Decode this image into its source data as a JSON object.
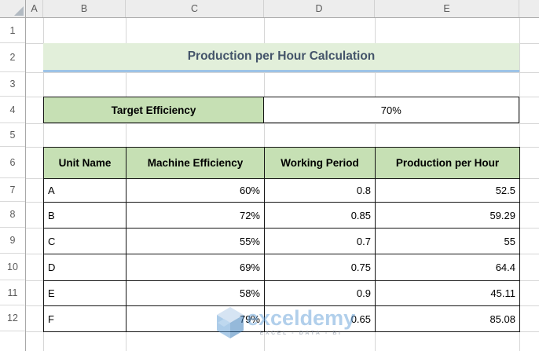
{
  "sheet": {
    "column_headers": [
      "A",
      "B",
      "C",
      "D",
      "E"
    ],
    "row_headers": [
      "1",
      "2",
      "3",
      "4",
      "5",
      "6",
      "7",
      "8",
      "9",
      "10",
      "11",
      "12"
    ]
  },
  "title": {
    "text": "Production per Hour Calculation"
  },
  "target": {
    "label": "Target Efficiency",
    "value": "70%"
  },
  "table": {
    "headers": [
      "Unit Name",
      "Machine Efficiency",
      "Working Period",
      "Production per Hour"
    ],
    "rows": [
      [
        "A",
        "60%",
        "0.8",
        "52.5"
      ],
      [
        "B",
        "72%",
        "0.85",
        "59.29"
      ],
      [
        "C",
        "55%",
        "0.7",
        "55"
      ],
      [
        "D",
        "69%",
        "0.75",
        "64.4"
      ],
      [
        "E",
        "58%",
        "0.9",
        "45.11"
      ],
      [
        "F",
        "79%",
        "0.65",
        "85.08"
      ]
    ]
  },
  "watermark": {
    "brand": "exceldemy",
    "tagline": "EXCEL - DATA - BI"
  },
  "colors": {
    "table_header_fill": "#C6E0B4",
    "title_fill": "#E2EFDA",
    "title_text": "#44546A",
    "title_underline": "#9DC3E6",
    "gridline": "#D6D6D6",
    "watermark_blue": "#5B9BD5"
  }
}
